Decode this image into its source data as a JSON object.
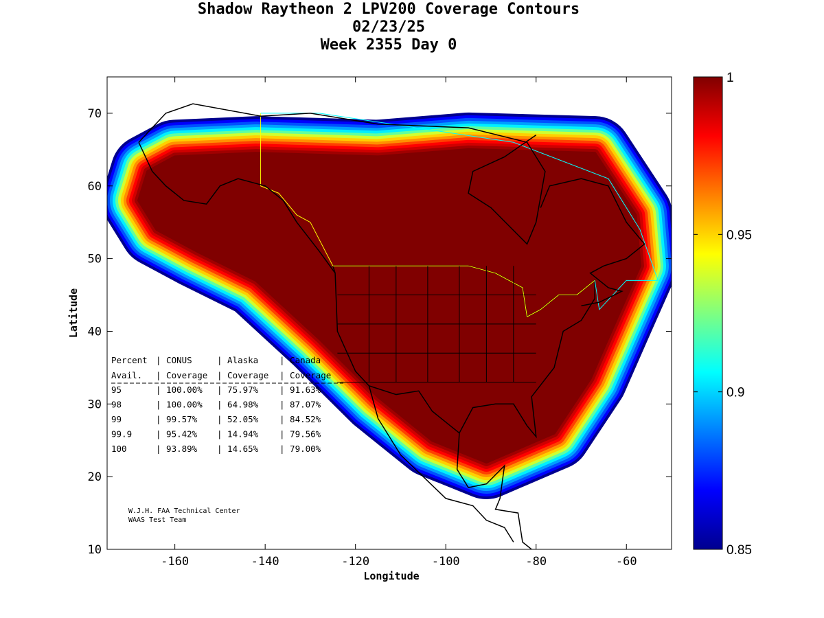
{
  "chart_data": {
    "type": "heatmap",
    "title": [
      "Shadow Raytheon 2 LPV200 Coverage Contours",
      "02/23/25",
      "Week 2355 Day 0"
    ],
    "xlabel": "Longitude",
    "ylabel": "Latitude",
    "xlim": [
      -175,
      -50
    ],
    "ylim": [
      10,
      75
    ],
    "xticks": [
      -160,
      -140,
      -120,
      -100,
      -80,
      -60
    ],
    "yticks": [
      10,
      20,
      30,
      40,
      50,
      60,
      70
    ],
    "colorbar": {
      "range": [
        0.85,
        1
      ],
      "ticks": [
        "0.85",
        "0.9",
        "0.95",
        "1"
      ],
      "colormap": "jet"
    },
    "table": {
      "header1": [
        "Percent",
        "CONUS",
        "Alaska",
        "Canada"
      ],
      "header2": [
        "Avail.",
        "Coverage",
        "Coverage",
        "Coverage"
      ],
      "rows": [
        [
          "95",
          "100.00%",
          "75.97%",
          "91.63%"
        ],
        [
          "98",
          "100.00%",
          "64.98%",
          "87.07%"
        ],
        [
          "99",
          "99.57%",
          "52.05%",
          "84.52%"
        ],
        [
          "99.9",
          "95.42%",
          "14.94%",
          "79.56%"
        ],
        [
          "100",
          "93.89%",
          "14.65%",
          "79.00%"
        ]
      ]
    },
    "credits": [
      "W.J.H. FAA Technical Center",
      "WAAS Test Team"
    ]
  }
}
